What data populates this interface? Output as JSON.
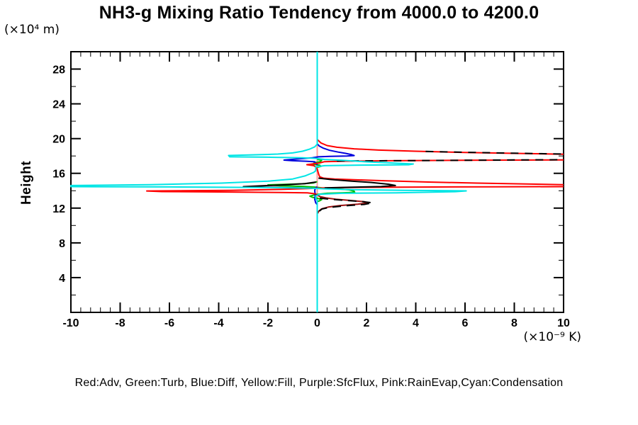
{
  "header": {
    "title": "NH3-g Mixing Ratio Tendency from 4000.0 to 4200.0"
  },
  "axes": {
    "y_unit_label": "(×10⁴ m)",
    "x_unit_label": "(×10⁻⁹ K)",
    "y_axis_title": "Height"
  },
  "legend": {
    "text": "Red:Adv, Green:Turb, Blue:Diff, Yellow:Fill, Purple:SfcFlux, Pink:RainEvap,Cyan:Condensation",
    "items": [
      {
        "color_name": "Red",
        "label": "Adv",
        "hex": "#ff0000"
      },
      {
        "color_name": "Green",
        "label": "Turb",
        "hex": "#00c000"
      },
      {
        "color_name": "Blue",
        "label": "Diff",
        "hex": "#0000dd"
      },
      {
        "color_name": "Yellow",
        "label": "Fill",
        "hex": "#ffff00"
      },
      {
        "color_name": "Purple",
        "label": "SfcFlux",
        "hex": "#bb00bb"
      },
      {
        "color_name": "Pink",
        "label": "RainEvap",
        "hex": "#ff9e9e"
      },
      {
        "color_name": "Cyan",
        "label": "Condensation",
        "hex": "#00e5e5"
      }
    ]
  },
  "chart_data": {
    "type": "line",
    "orientation": "vertical-profile (x = tendency value, y = height)",
    "title": "NH3-g Mixing Ratio Tendency from 4000.0 to 4200.0",
    "xlabel": "(×10⁻⁹ K)",
    "ylabel": "Height (×10⁴ m)",
    "xlim": [
      -10,
      10
    ],
    "ylim": [
      0,
      30
    ],
    "x_major_ticks": [
      -10,
      -8,
      -6,
      -4,
      -2,
      0,
      2,
      4,
      6,
      8,
      10
    ],
    "x_minor_step": 0.4,
    "y_major_ticks": [
      4,
      8,
      12,
      16,
      20,
      24,
      28
    ],
    "y_minor_ticks": [
      2,
      6,
      10,
      14,
      18,
      22,
      26
    ],
    "grid": false,
    "zero_line_x": 0,
    "series": [
      {
        "name": "Fill (Yellow, zero line)",
        "color": "#ffff00",
        "width": 2,
        "segments": [
          [
            [
              0,
              0
            ],
            [
              0,
              30
            ]
          ]
        ]
      },
      {
        "name": "SfcFlux (Purple, zero line)",
        "color": "#bb00bb",
        "width": 2,
        "segments": [
          [
            [
              0,
              0
            ],
            [
              0,
              30
            ]
          ]
        ]
      },
      {
        "name": "RainEvap (Pink, zero line)",
        "color": "#ff9e9e",
        "width": 2,
        "segments": [
          [
            [
              0,
              0
            ],
            [
              0,
              30
            ]
          ]
        ]
      },
      {
        "name": "Turb (Green)",
        "color": "#00c000",
        "width": 2,
        "segments": [
          [
            [
              0,
              17.62
            ],
            [
              0.18,
              17.5
            ],
            [
              0.12,
              17.35
            ],
            [
              -0.12,
              17.22
            ],
            [
              -0.18,
              17.05
            ],
            [
              0.1,
              16.95
            ],
            [
              0.15,
              16.8
            ],
            [
              0,
              16.7
            ]
          ],
          [
            [
              0,
              15.05
            ],
            [
              -0.15,
              14.9
            ],
            [
              -0.6,
              14.8
            ],
            [
              -1.3,
              14.73
            ],
            [
              -2.0,
              14.67
            ],
            [
              -1.5,
              14.57
            ],
            [
              -0.6,
              14.5
            ],
            [
              -0.1,
              14.42
            ],
            [
              0.2,
              14.32
            ],
            [
              0.8,
              14.22
            ],
            [
              1.3,
              14.1
            ],
            [
              1.5,
              13.95
            ],
            [
              1.52,
              13.82
            ],
            [
              1.0,
              13.76
            ],
            [
              0.4,
              13.7
            ],
            [
              0.05,
              13.6
            ],
            [
              -0.15,
              13.5
            ],
            [
              -0.3,
              13.38
            ],
            [
              -0.2,
              13.25
            ],
            [
              0.05,
              13.1
            ],
            [
              0.18,
              12.98
            ],
            [
              0.1,
              12.85
            ],
            [
              0,
              12.75
            ]
          ]
        ]
      },
      {
        "name": "Diff (Blue)",
        "color": "#0000dd",
        "width": 2,
        "segments": [
          [
            [
              0,
              19.4
            ],
            [
              0.08,
              19.15
            ],
            [
              0.25,
              18.9
            ],
            [
              0.5,
              18.65
            ],
            [
              0.85,
              18.45
            ],
            [
              1.15,
              18.3
            ],
            [
              1.4,
              18.15
            ],
            [
              1.5,
              18.05
            ],
            [
              1.2,
              17.99
            ],
            [
              0.5,
              17.95
            ],
            [
              0.05,
              17.9
            ],
            [
              -0.2,
              17.8
            ],
            [
              -0.6,
              17.7
            ],
            [
              -1.05,
              17.6
            ],
            [
              -1.35,
              17.53
            ],
            [
              -1.0,
              17.45
            ],
            [
              -0.45,
              17.4
            ],
            [
              -0.1,
              17.33
            ],
            [
              -0.03,
              17.1
            ],
            [
              0,
              16.95
            ]
          ],
          [
            [
              0,
              14.45
            ],
            [
              -0.08,
              14.3
            ],
            [
              -0.1,
              14.0
            ],
            [
              -0.08,
              13.5
            ],
            [
              -0.1,
              13.0
            ],
            [
              -0.06,
              12.6
            ],
            [
              0,
              12.4
            ]
          ]
        ]
      },
      {
        "name": "Adv (Red)",
        "color": "#ff0000",
        "width": 2,
        "segments": [
          [
            [
              0,
              21.0
            ],
            [
              0,
              19.9
            ],
            [
              0.15,
              19.5
            ],
            [
              0.4,
              19.2
            ],
            [
              0.8,
              19.0
            ],
            [
              1.5,
              18.82
            ],
            [
              2.5,
              18.68
            ],
            [
              4,
              18.55
            ],
            [
              6,
              18.4
            ],
            [
              8,
              18.3
            ],
            [
              10,
              18.2
            ]
          ],
          [
            [
              10,
              17.55
            ],
            [
              6,
              17.5
            ],
            [
              3,
              17.45
            ],
            [
              1,
              17.4
            ],
            [
              0.3,
              17.35
            ],
            [
              0.1,
              17.2
            ],
            [
              -0.15,
              17.1
            ],
            [
              -0.42,
              17.0
            ],
            [
              -0.15,
              16.9
            ],
            [
              -0.05,
              16.72
            ],
            [
              0,
              16.5
            ],
            [
              0.03,
              16.2
            ],
            [
              0.06,
              15.9
            ],
            [
              0.1,
              15.6
            ],
            [
              0.25,
              15.45
            ],
            [
              0.7,
              15.35
            ],
            [
              1.6,
              15.25
            ],
            [
              2.8,
              15.15
            ],
            [
              4.5,
              15.0
            ],
            [
              6.5,
              14.88
            ],
            [
              8.5,
              14.77
            ],
            [
              10,
              14.7
            ]
          ],
          [
            [
              10,
              14.47
            ],
            [
              7,
              14.45
            ],
            [
              4,
              14.42
            ],
            [
              1.5,
              14.38
            ],
            [
              0.3,
              14.32
            ],
            [
              -0.4,
              14.25
            ],
            [
              -1.5,
              14.15
            ],
            [
              -3.5,
              14.05
            ],
            [
              -5.5,
              14.0
            ],
            [
              -6.92,
              13.97
            ],
            [
              -6.3,
              13.9
            ],
            [
              -4,
              13.86
            ],
            [
              -1.5,
              13.8
            ],
            [
              -0.4,
              13.75
            ],
            [
              -0.08,
              13.65
            ]
          ]
        ]
      },
      {
        "name": "Adv (dark segment under black overlay)",
        "color": "#9b1010",
        "width": 2,
        "segments": [
          [
            [
              -0.08,
              13.65
            ],
            [
              0.02,
              13.48
            ],
            [
              0.12,
              13.32
            ],
            [
              0.35,
              13.17
            ],
            [
              0.75,
              13.02
            ],
            [
              1.35,
              12.88
            ],
            [
              1.92,
              12.73
            ],
            [
              2.06,
              12.6
            ],
            [
              1.65,
              12.45
            ],
            [
              0.95,
              12.3
            ],
            [
              0.45,
              12.12
            ],
            [
              0.18,
              11.92
            ],
            [
              0.06,
              11.65
            ],
            [
              0.02,
              11.4
            ]
          ]
        ]
      },
      {
        "name": "Black (unlabeled overlay)",
        "color": "#000000",
        "width": 2,
        "segments": [
          [
            [
              -0.05,
              15.0
            ],
            [
              -0.5,
              14.82
            ],
            [
              -1.3,
              14.68
            ],
            [
              -2.3,
              14.56
            ],
            [
              -3.0,
              14.47
            ],
            [
              -2.2,
              14.4
            ],
            [
              -1.0,
              14.35
            ],
            [
              -0.2,
              14.3
            ]
          ],
          [
            [
              0.05,
              15.45
            ],
            [
              0.5,
              15.3
            ],
            [
              1.3,
              15.12
            ],
            [
              2.2,
              14.95
            ],
            [
              2.9,
              14.75
            ],
            [
              3.17,
              14.6
            ],
            [
              2.6,
              14.48
            ],
            [
              1.3,
              14.4
            ],
            [
              0.3,
              14.33
            ]
          ]
        ]
      },
      {
        "name": "Black dashed overlay (upper flank)",
        "color": "#000000",
        "width": 2,
        "dash": "11 9",
        "segments": [
          [
            [
              4.4,
              18.52
            ],
            [
              6,
              18.42
            ],
            [
              8,
              18.32
            ],
            [
              10,
              18.22
            ]
          ],
          [
            [
              0.8,
              17.42
            ],
            [
              2,
              17.44
            ],
            [
              4,
              17.47
            ],
            [
              6,
              17.5
            ],
            [
              8,
              17.54
            ],
            [
              10,
              17.57
            ]
          ]
        ]
      },
      {
        "name": "Black dashed overlay (lower bump)",
        "color": "#000000",
        "width": 2,
        "dash": "12 8",
        "segments": [
          [
            [
              0.1,
              13.15
            ],
            [
              0.5,
              13.03
            ],
            [
              1.1,
              12.9
            ],
            [
              1.8,
              12.76
            ],
            [
              2.25,
              12.6
            ],
            [
              1.9,
              12.42
            ],
            [
              1.1,
              12.26
            ],
            [
              0.5,
              12.08
            ],
            [
              0.2,
              11.9
            ],
            [
              0.08,
              11.65
            ]
          ]
        ]
      },
      {
        "name": "Condensation (Cyan)",
        "color": "#00e5e5",
        "width": 2,
        "segments": [
          [
            [
              0,
              30
            ],
            [
              0,
              19.35
            ],
            [
              -0.1,
              19.05
            ],
            [
              -0.3,
              18.8
            ],
            [
              -0.6,
              18.55
            ],
            [
              -1.0,
              18.35
            ],
            [
              -1.6,
              18.22
            ],
            [
              -2.5,
              18.14
            ],
            [
              -3.6,
              18.06
            ],
            [
              -3.55,
              17.9
            ],
            [
              -2.0,
              17.86
            ],
            [
              -0.6,
              17.8
            ],
            [
              -0.05,
              17.72
            ],
            [
              0.3,
              17.6
            ],
            [
              1.0,
              17.5
            ],
            [
              2.0,
              17.32
            ],
            [
              3.0,
              17.2
            ],
            [
              3.9,
              17.08
            ],
            [
              3.7,
              16.99
            ],
            [
              1.5,
              16.94
            ],
            [
              0.3,
              16.88
            ],
            [
              -0.06,
              16.75
            ],
            [
              -0.06,
              16.3
            ],
            [
              -0.15,
              16.1
            ],
            [
              -0.5,
              15.7
            ],
            [
              -1.0,
              15.35
            ],
            [
              -2.0,
              15.1
            ],
            [
              -3.9,
              14.88
            ],
            [
              -6.8,
              14.7
            ],
            [
              -10,
              14.6
            ],
            [
              -10,
              14.47
            ],
            [
              -6.0,
              14.44
            ],
            [
              -2.0,
              14.37
            ],
            [
              -0.3,
              14.3
            ],
            [
              0.4,
              14.2
            ],
            [
              1.5,
              14.12
            ],
            [
              3.5,
              14.05
            ],
            [
              6.05,
              13.98
            ],
            [
              5.6,
              13.89
            ],
            [
              3.2,
              13.76
            ],
            [
              1.0,
              13.7
            ],
            [
              0.1,
              13.6
            ],
            [
              -0.06,
              13.4
            ],
            [
              -0.06,
              13.1
            ],
            [
              0,
              12.9
            ],
            [
              0,
              0
            ]
          ]
        ]
      }
    ]
  }
}
